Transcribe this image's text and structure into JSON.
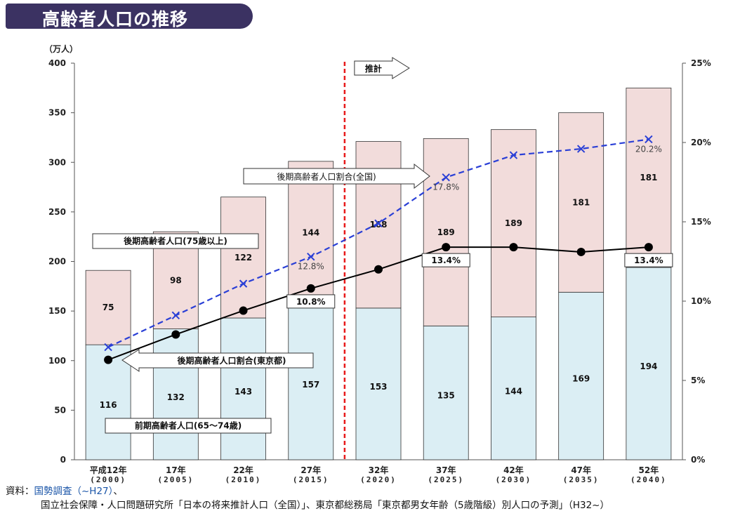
{
  "page": {
    "title": "高齢者人口の推移"
  },
  "source": {
    "label": "資料：",
    "line1_org": "国勢調査",
    "line1_range": "（~H27）",
    "line1_tail": "、",
    "line2": "国立社会保障・人口問題研究所「日本の将来推計人口（全国）」、東京都総務局「東京都男女年齢（5歳階級）別人口の予測」（H32~）"
  },
  "colors": {
    "early_bar": "#dbeef4",
    "late_bar": "#f2dcdb",
    "bar_border": "#333333",
    "tokyo_line": "#000000",
    "national_line": "#2a3fd6",
    "projection_line": "#e8191a"
  },
  "chart_data": {
    "type": "bar",
    "stacked": true,
    "categories": [
      "平成12年",
      "17年",
      "22年",
      "27年",
      "32年",
      "37年",
      "42年",
      "47年",
      "52年"
    ],
    "categories_sub": [
      "(2000)",
      "(2005)",
      "(2010)",
      "(2015)",
      "(2020)",
      "(2025)",
      "(2030)",
      "(2035)",
      "(2040)"
    ],
    "y_unit": "（万人）",
    "ylim": [
      0,
      400
    ],
    "yticks": [
      "0",
      "50",
      "100",
      "150",
      "200",
      "250",
      "300",
      "350",
      "400"
    ],
    "y2lim": [
      0,
      25
    ],
    "y2ticks": [
      "0%",
      "5%",
      "10%",
      "15%",
      "20%",
      "25%"
    ],
    "series": [
      {
        "name": "前期高齢者人口(65～74歳)",
        "values": [
          116,
          132,
          143,
          157,
          153,
          135,
          144,
          169,
          194
        ]
      },
      {
        "name": "後期高齢者人口(75歳以上)",
        "values": [
          75,
          98,
          122,
          144,
          168,
          189,
          189,
          181,
          181
        ]
      }
    ],
    "lines": [
      {
        "name": "後期高齢者人口割合(東京都)",
        "axis": "right",
        "values": [
          6.3,
          7.9,
          9.4,
          10.8,
          12.0,
          13.4,
          13.4,
          13.1,
          13.4
        ]
      },
      {
        "name": "後期高齢者人口割合(全国)",
        "axis": "right",
        "values": [
          7.1,
          9.1,
          11.1,
          12.8,
          14.9,
          17.8,
          19.2,
          19.6,
          20.2
        ]
      }
    ],
    "value_labels": {
      "tokyo": [
        {
          "index": 3,
          "text": "10.8%"
        },
        {
          "index": 5,
          "text": "13.4%"
        },
        {
          "index": 8,
          "text": "13.4%"
        }
      ],
      "national": [
        {
          "index": 3,
          "text": "12.8%"
        },
        {
          "index": 5,
          "text": "17.8%"
        },
        {
          "index": 8,
          "text": "20.2%"
        }
      ]
    },
    "projection": {
      "label": "推計",
      "after_index": 3
    }
  }
}
